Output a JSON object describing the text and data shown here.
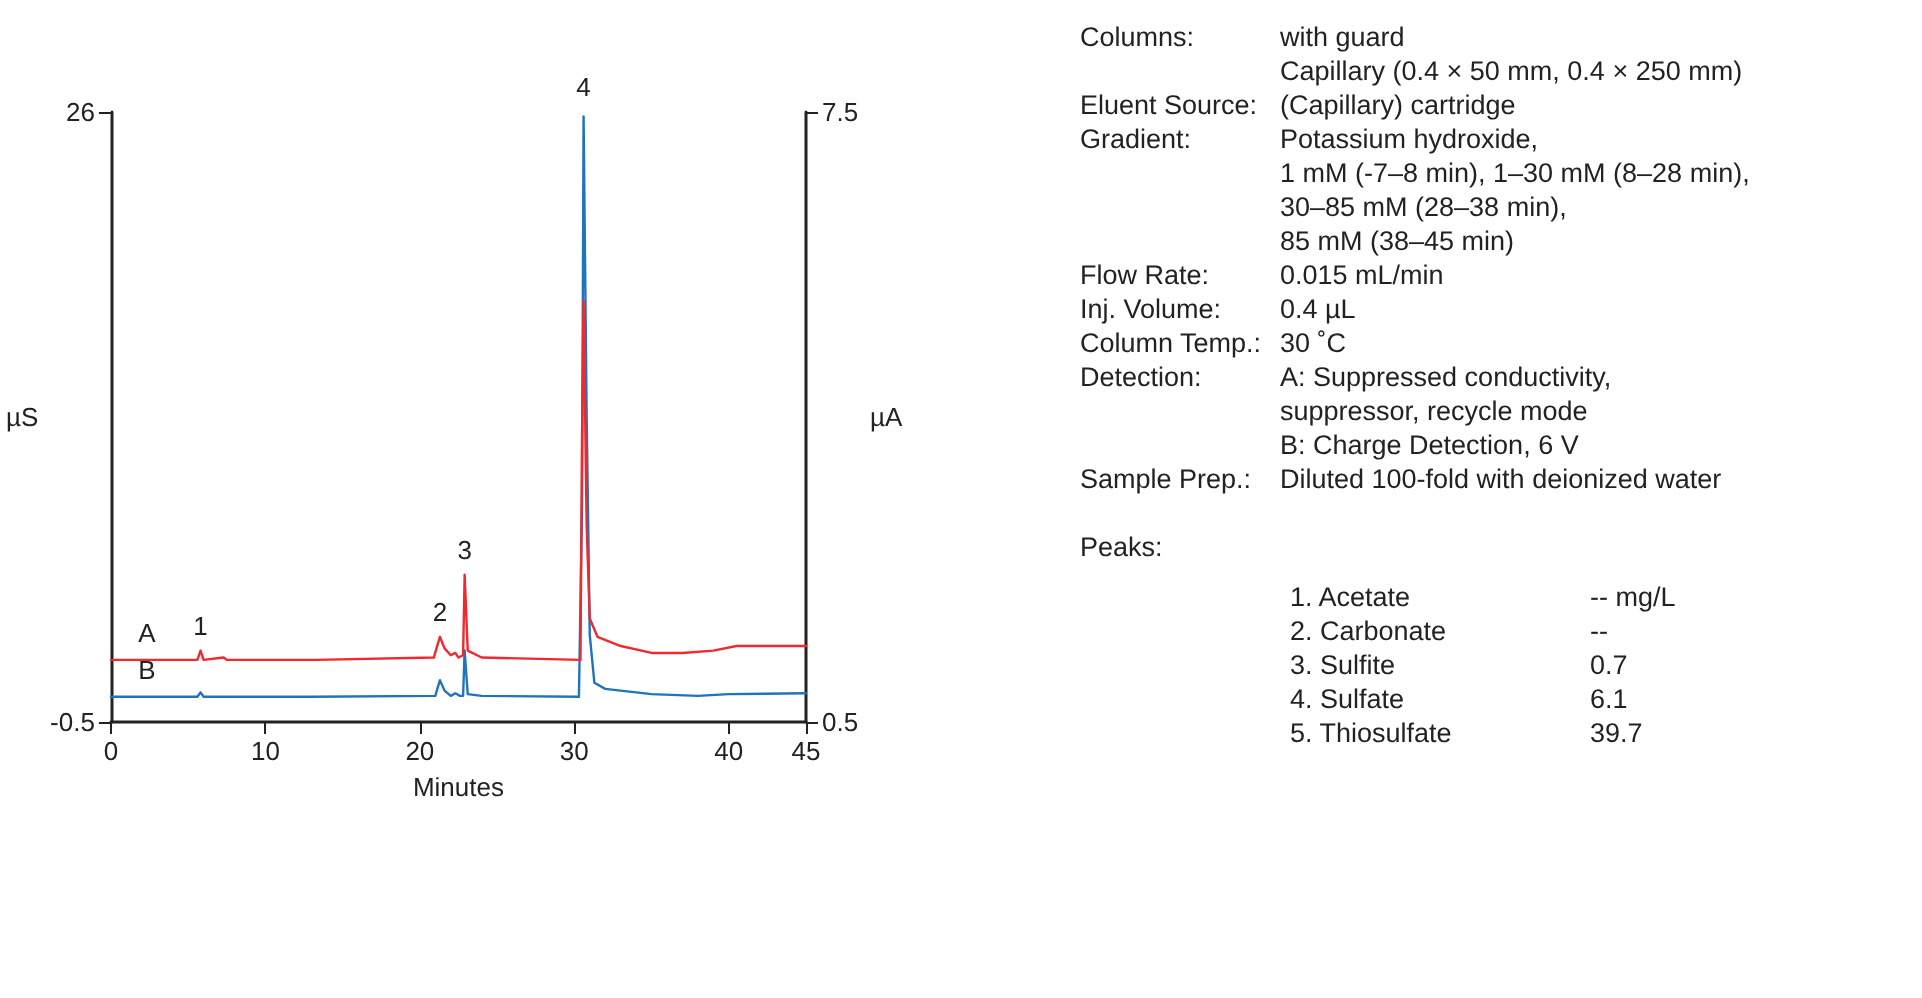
{
  "chart_data": {
    "type": "line",
    "xlabel": "Minutes",
    "ylabel": "µS",
    "y2label": "µA",
    "xlim": [
      0,
      45
    ],
    "xticks": [
      0,
      10,
      20,
      30,
      40,
      45
    ],
    "ylim": [
      -0.5,
      26
    ],
    "yticks": [
      -0.5,
      26
    ],
    "y2lim": [
      0.5,
      7.5
    ],
    "y2ticks": [
      0.5,
      7.5
    ],
    "grid": false,
    "legend": false,
    "marker": "none",
    "line_style": "solid",
    "series": [
      {
        "name": "A",
        "color": "#ee2a2e",
        "x": [
          0,
          5.6,
          5.8,
          6.0,
          7.3,
          7.5,
          13.3,
          20.9,
          21.3,
          21.6,
          22.0,
          22.3,
          22.5,
          22.8,
          22.9,
          23.1,
          24,
          30.4,
          30.5,
          30.6,
          30.8,
          31.0,
          31.5,
          33,
          35,
          37,
          39,
          40.5,
          42,
          45
        ],
        "values": [
          2.2,
          2.2,
          2.6,
          2.2,
          2.3,
          2.2,
          2.2,
          2.3,
          3.2,
          2.7,
          2.4,
          2.5,
          2.3,
          2.4,
          5.9,
          2.6,
          2.3,
          2.2,
          12,
          17.8,
          8,
          4.0,
          3.2,
          2.8,
          2.5,
          2.5,
          2.6,
          2.8,
          2.8,
          2.8
        ]
      },
      {
        "name": "B",
        "color": "#1f74bd",
        "axis": "y2",
        "x": [
          0,
          5.6,
          5.8,
          6.0,
          13,
          21.0,
          21.3,
          21.6,
          22.0,
          22.3,
          22.6,
          22.8,
          22.9,
          23.1,
          24,
          30.3,
          30.5,
          30.6,
          30.8,
          31.0,
          31.3,
          32,
          35,
          38,
          40,
          45
        ],
        "values": [
          0.79,
          0.79,
          0.84,
          0.79,
          0.79,
          0.8,
          0.98,
          0.86,
          0.8,
          0.83,
          0.8,
          0.8,
          1.32,
          0.82,
          0.8,
          0.79,
          3,
          7.45,
          4,
          1.5,
          0.95,
          0.88,
          0.82,
          0.8,
          0.82,
          0.83
        ]
      }
    ],
    "annotations": [
      {
        "text": "1",
        "x": 5.8,
        "y": 2.6
      },
      {
        "text": "2",
        "x": 21.3,
        "y": 3.2
      },
      {
        "text": "3",
        "x": 22.9,
        "y": 5.9
      },
      {
        "text": "4",
        "x": 30.6,
        "y": 26
      },
      "Columns:\twith guard",
      "\tCapillary (0.4 × 50 mm, 0.4 × 250 mm)",
      "Eluent Source:\t(Capillary) cartridge",
      "Gradient:\tPotassium hydroxide,",
      "\t1 mM (-7–8 min), 1–30 mM (8–28 min),",
      "\t30–85 mM (28–38 min),",
      "\t85 mM (38–45 min)",
      "Flow Rate:\t0.015 mL/min",
      "Inj. Volume:\t0.4 µL",
      "Column Temp.:\t30 ˚C",
      "Detection:\tA: Suppressed conductivity,",
      "\tsuppressor, recycle mode",
      "\tB: Charge Detection, 6 V",
      "Sample Prep.:\tDiluted 100-fold with deionized water",
      "Peaks:",
      "\t1. Acetate\t-- mg/L",
      "\t2. Carbonate\t--",
      "\t3. Sulfite\t0.7",
      "\t4. Sulfate\t6.1",
      "\t5. Thiosulfate\t39.7"
    ]
  }
}
